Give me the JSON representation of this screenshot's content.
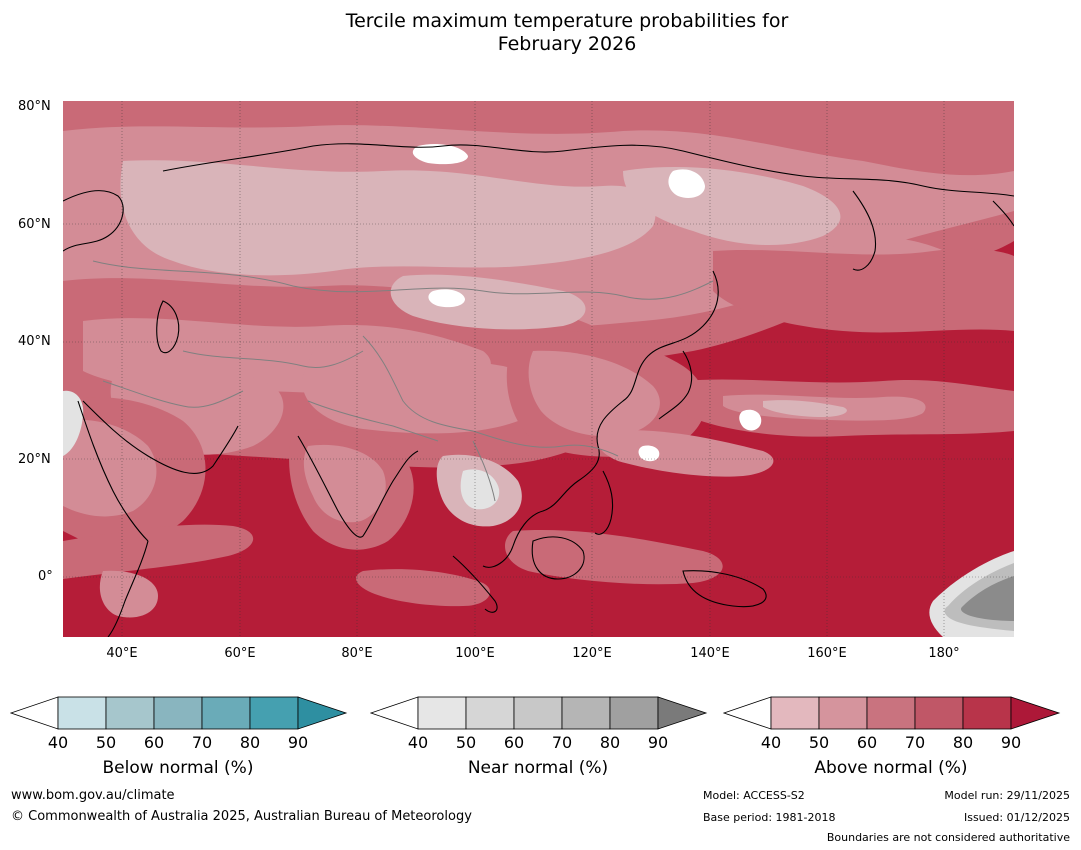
{
  "title_line1": "Tercile maximum temperature probabilities for",
  "title_line2": "February 2026",
  "map": {
    "lat_labels": [
      "80°N",
      "60°N",
      "40°N",
      "20°N",
      "0°"
    ],
    "lon_labels": [
      "40°E",
      "60°E",
      "80°E",
      "100°E",
      "120°E",
      "140°E",
      "160°E",
      "180°"
    ],
    "colors": {
      "sea_dominant": "#b51d38",
      "above_50": "#d9b4b9",
      "above_60": "#d38c96",
      "above_70": "#c96a77",
      "above_80": "#bd3d52",
      "near_high": "#8b8b8b",
      "near_mid": "#bdbdbd",
      "near_low": "#e3e3e3"
    }
  },
  "colorbars": [
    {
      "label": "Below normal (%)",
      "ticks": [
        "40",
        "50",
        "60",
        "70",
        "80",
        "90"
      ],
      "colors": [
        "#ffffff",
        "#c9e1e7",
        "#a6c6cc",
        "#89b5bf",
        "#6aabb8",
        "#45a0b0",
        "#2e8fa1"
      ]
    },
    {
      "label": "Near normal (%)",
      "ticks": [
        "40",
        "50",
        "60",
        "70",
        "80",
        "90"
      ],
      "colors": [
        "#ffffff",
        "#e6e6e6",
        "#d6d6d6",
        "#c8c8c8",
        "#b5b5b5",
        "#a0a0a0",
        "#7a7a7a"
      ]
    },
    {
      "label": "Above normal (%)",
      "ticks": [
        "40",
        "50",
        "60",
        "70",
        "80",
        "90"
      ],
      "colors": [
        "#ffffff",
        "#e3b8be",
        "#d5949d",
        "#c9737f",
        "#c05767",
        "#b8344a",
        "#ad1838"
      ]
    }
  ],
  "footer": {
    "website": "www.bom.gov.au/climate",
    "copyright": "© Commonwealth of Australia 2025, Australian Bureau of Meteorology",
    "model": "Model: ACCESS-S2",
    "base_period": "Base period: 1981-2018",
    "model_run": "Model run: 29/11/2025",
    "issued": "Issued: 01/12/2025",
    "disclaimer": "Boundaries are not considered authoritative"
  }
}
